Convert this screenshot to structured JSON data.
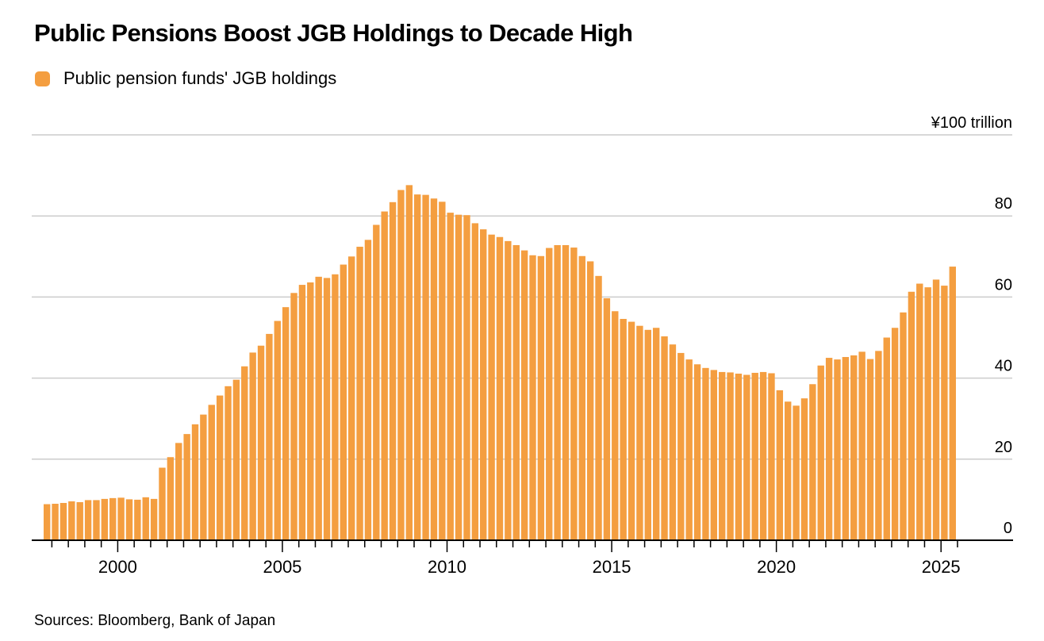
{
  "header": {
    "title": "Public Pensions Boost JGB Holdings to Decade High",
    "legend": [
      {
        "label": "Public pension funds' JGB holdings",
        "color": "#F49E40"
      }
    ]
  },
  "chart_data": {
    "type": "bar",
    "title": "Public Pensions Boost JGB Holdings to Decade High",
    "series_name": "Public pension funds' JGB holdings",
    "axis_top_label": "¥100 trillion",
    "ylim": [
      0,
      100
    ],
    "grid": true,
    "legend_position": "top-left",
    "x_start": 1997.75,
    "x_step": 0.25,
    "frequency": "quarterly",
    "values": [
      8.9,
      9.0,
      9.2,
      9.6,
      9.4,
      9.9,
      9.9,
      10.2,
      10.4,
      10.5,
      10.1,
      10.0,
      10.6,
      10.2,
      17.9,
      20.5,
      24.0,
      26.2,
      28.6,
      31.0,
      33.4,
      35.7,
      38.0,
      39.6,
      42.9,
      46.3,
      48.0,
      50.9,
      54.1,
      57.5,
      61.0,
      63.0,
      63.6,
      65.0,
      64.7,
      65.6,
      68.0,
      70.0,
      72.4,
      74.1,
      77.8,
      81.1,
      83.4,
      86.4,
      87.6,
      85.3,
      85.2,
      84.3,
      83.5,
      80.8,
      80.3,
      80.2,
      78.2,
      76.7,
      75.4,
      74.8,
      73.8,
      72.8,
      71.5,
      70.3,
      70.1,
      72.1,
      72.8,
      72.8,
      72.2,
      70.1,
      68.8,
      65.2,
      59.7,
      56.5,
      54.6,
      53.9,
      52.9,
      51.9,
      52.4,
      50.3,
      48.3,
      46.2,
      44.6,
      43.4,
      42.5,
      42.0,
      41.5,
      41.4,
      41.1,
      40.8,
      41.3,
      41.5,
      41.2,
      37.0,
      34.2,
      33.2,
      35.0,
      38.5,
      43.1,
      45.0,
      44.6,
      45.2,
      45.6,
      46.5,
      44.7,
      46.7,
      50.0,
      52.4,
      56.2,
      61.3,
      63.3,
      62.4,
      64.3,
      62.8,
      67.5
    ],
    "y_tick_labels": [
      {
        "value": 0,
        "label": "0"
      },
      {
        "value": 20,
        "label": "20"
      },
      {
        "value": 40,
        "label": "40"
      },
      {
        "value": 60,
        "label": "60"
      },
      {
        "value": 80,
        "label": "80"
      },
      {
        "value": 100,
        "label": "¥100 trillion"
      }
    ],
    "y_gridlines": [
      20,
      40,
      60,
      80,
      100
    ],
    "x_tick_labels": [
      "2000",
      "2005",
      "2010",
      "2015",
      "2020",
      "2025"
    ]
  },
  "footer": {
    "source": "Sources: Bloomberg, Bank of Japan"
  },
  "colors": {
    "bar": "#F49E40",
    "grid": "#CCCCCC",
    "axis": "#000000",
    "text": "#000000",
    "background": "#FFFFFF"
  }
}
